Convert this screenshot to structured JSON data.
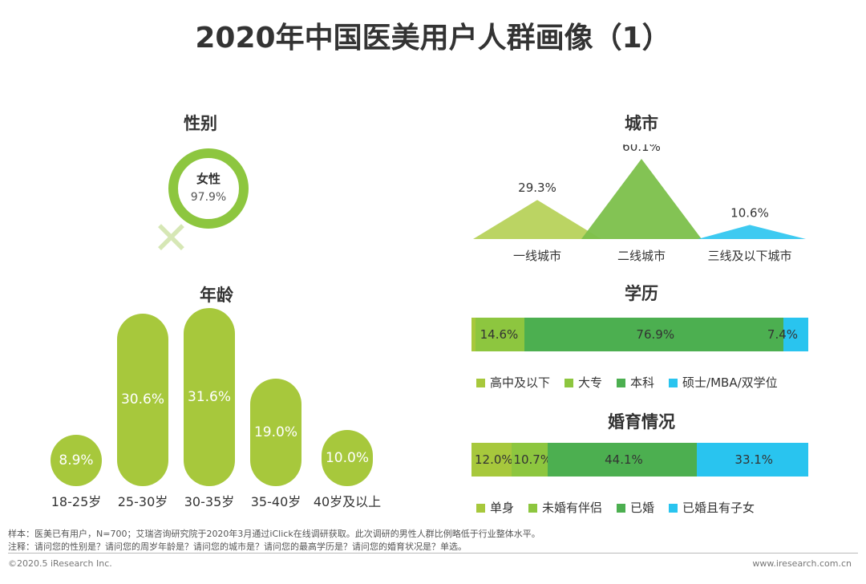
{
  "title": "2020年中国医美用户人群画像（1）",
  "colors": {
    "green_light": "#a7c83c",
    "green_mid": "#8dc63f",
    "green_dark": "#4caf50",
    "cyan": "#29c4ef"
  },
  "gender": {
    "heading": "性别",
    "label": "女性",
    "value": "97.9%",
    "fraction": 0.979
  },
  "chart_data": [
    {
      "type": "bar",
      "title": "年龄",
      "categories": [
        "18-25岁",
        "25-30岁",
        "30-35岁",
        "35-40岁",
        "40岁及以上"
      ],
      "values": [
        8.9,
        30.6,
        31.6,
        19.0,
        10.0
      ],
      "labels": [
        "8.9%",
        "30.6%",
        "31.6%",
        "19.0%",
        "10.0%"
      ]
    },
    {
      "type": "area",
      "title": "城市",
      "categories": [
        "一线城市",
        "二线城市",
        "三线及以下城市"
      ],
      "values": [
        29.3,
        60.1,
        10.6
      ],
      "labels": [
        "29.3%",
        "60.1%",
        "10.6%"
      ]
    },
    {
      "type": "bar",
      "title": "学历",
      "stacked": true,
      "categories": [
        "高中及以下",
        "大专",
        "本科",
        "硕士/MBA/双学位"
      ],
      "values": [
        1.1,
        14.6,
        76.9,
        7.4
      ],
      "labels": [
        "",
        "14.6%",
        "76.9%",
        "7.4%"
      ]
    },
    {
      "type": "bar",
      "title": "婚育情况",
      "stacked": true,
      "categories": [
        "单身",
        "未婚有伴侣",
        "已婚",
        "已婚且有子女"
      ],
      "values": [
        12.0,
        10.7,
        44.1,
        33.1
      ],
      "labels": [
        "12.0%",
        "10.7%",
        "44.1%",
        "33.1%"
      ]
    }
  ],
  "notes": {
    "sample": "样本：医美已有用户，N=700；艾瑞咨询研究院于2020年3月通过iClick在线调研获取。此次调研的男性人群比例略低于行业整体水平。",
    "note": "注释：请问您的性别是？请问您的周岁年龄是？请问您的城市是？请问您的最高学历是？请问您的婚育状况是？单选。"
  },
  "footer": {
    "left": "©2020.5 iResearch Inc.",
    "right": "www.iresearch.com.cn"
  }
}
